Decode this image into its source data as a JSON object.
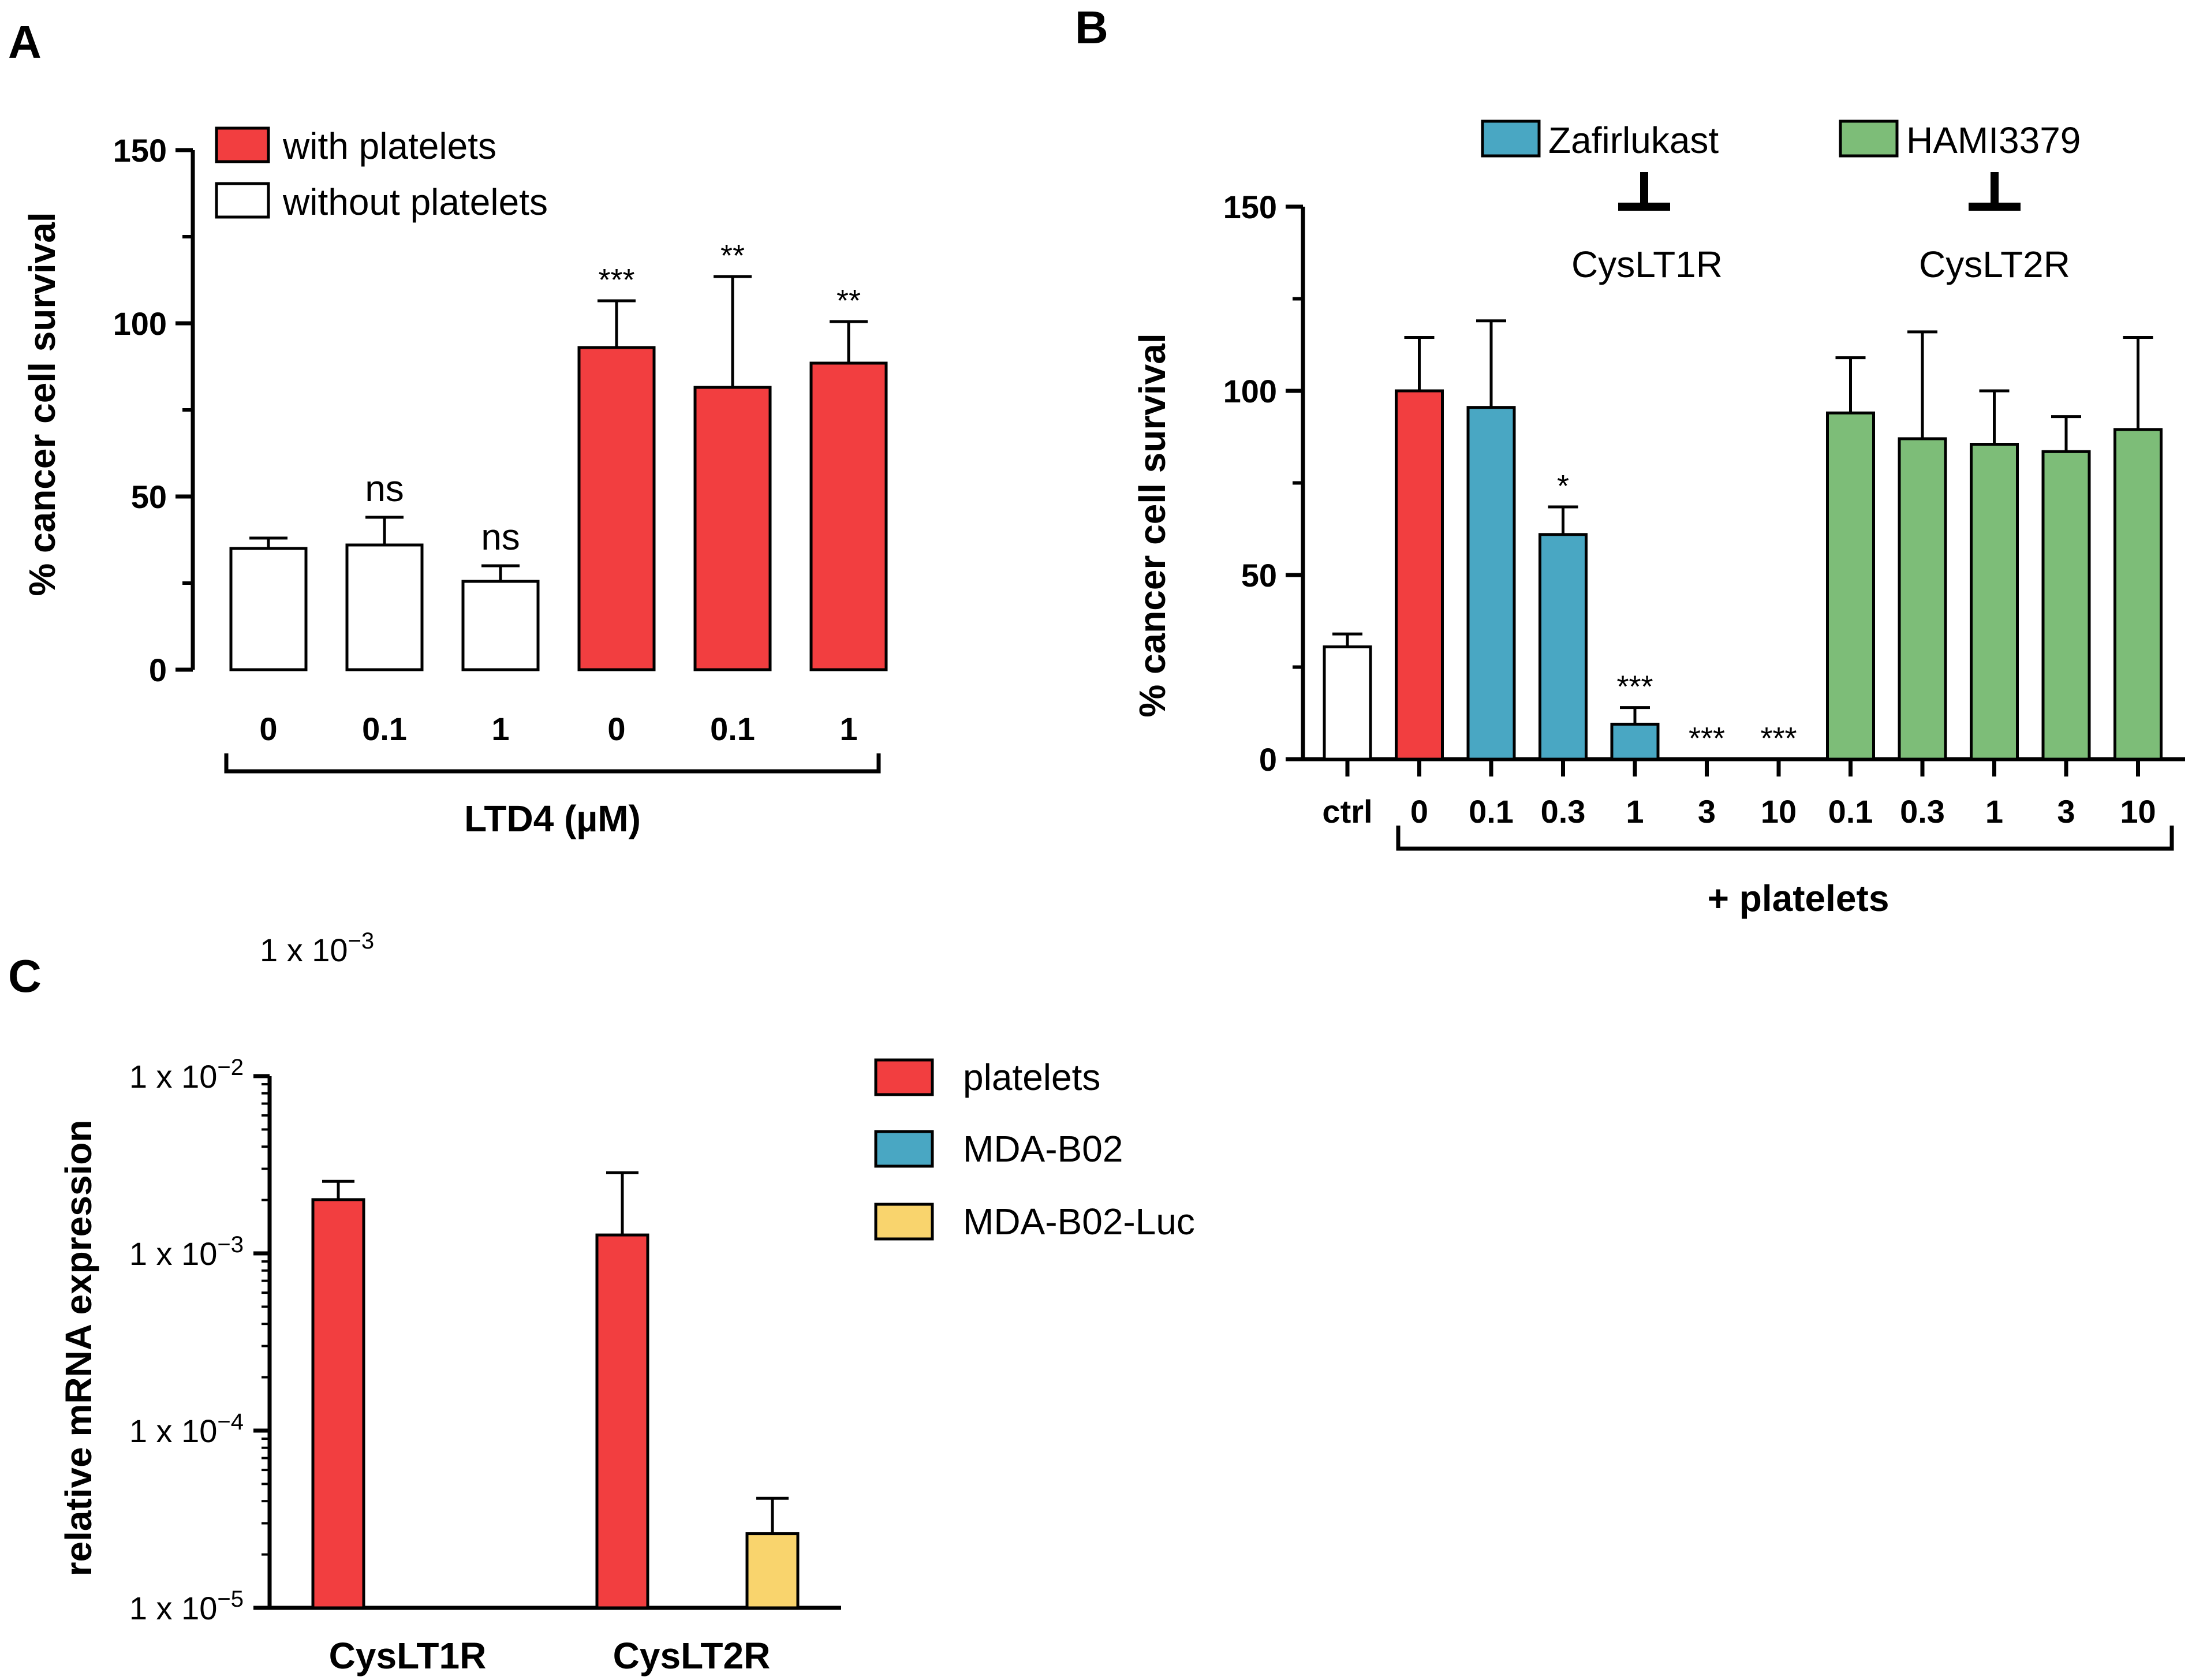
{
  "colors": {
    "red": "#f23e40",
    "blue": "#49a7c3",
    "green": "#7dbd78",
    "yellow": "#f9d46d",
    "white": "#ffffff",
    "axis": "#000000"
  },
  "chart_data": [
    {
      "panel": "A",
      "type": "bar",
      "ylabel": "% cancer cell survival",
      "xlabel": "LTD4 (µM)",
      "ylim": [
        0,
        150
      ],
      "yticks": [
        "0",
        "50",
        "100",
        "150"
      ],
      "legend": [
        {
          "label": "with platelets",
          "color": "#f23e40"
        },
        {
          "label": "without platelets",
          "color": "#ffffff"
        }
      ],
      "bars": [
        {
          "category": "0",
          "value": 35,
          "error": 3,
          "color": "#ffffff",
          "sig": ""
        },
        {
          "category": "0.1",
          "value": 36,
          "error": 8,
          "color": "#ffffff",
          "sig": "ns"
        },
        {
          "category": "1",
          "value": 25.5,
          "error": 4.5,
          "color": "#ffffff",
          "sig": "ns"
        },
        {
          "category": "0",
          "value": 93,
          "error": 13.5,
          "color": "#f23e40",
          "sig": "***"
        },
        {
          "category": "0.1",
          "value": 81.5,
          "error": 32,
          "color": "#f23e40",
          "sig": "**"
        },
        {
          "category": "1",
          "value": 88.5,
          "error": 12,
          "color": "#f23e40",
          "sig": "**"
        }
      ]
    },
    {
      "panel": "B",
      "type": "bar",
      "ylabel": "% cancer cell survival",
      "xlabel": "+ platelets",
      "ylim": [
        0,
        150
      ],
      "yticks": [
        "0",
        "50",
        "100",
        "150"
      ],
      "legend": [
        {
          "label": "Zafirlukast",
          "color": "#49a7c3",
          "target": "CysLT1R"
        },
        {
          "label": "HAMI3379",
          "color": "#7dbd78",
          "target": "CysLT2R"
        }
      ],
      "bars": [
        {
          "category": "ctrl",
          "value": 30.5,
          "error": 3.5,
          "color": "#ffffff",
          "sig": ""
        },
        {
          "category": "0",
          "value": 100,
          "error": 14.5,
          "color": "#f23e40",
          "sig": ""
        },
        {
          "category": "0.1",
          "value": 95.5,
          "error": 23.5,
          "color": "#49a7c3",
          "sig": ""
        },
        {
          "category": "0.3",
          "value": 61,
          "error": 7.5,
          "color": "#49a7c3",
          "sig": "*"
        },
        {
          "category": "1",
          "value": 9.5,
          "error": 4.5,
          "color": "#49a7c3",
          "sig": "***"
        },
        {
          "category": "3",
          "value": 0,
          "error": 0,
          "color": "#49a7c3",
          "sig": "***"
        },
        {
          "category": "10",
          "value": 0,
          "error": 0,
          "color": "#49a7c3",
          "sig": "***"
        },
        {
          "category": "0.1",
          "value": 94,
          "error": 15,
          "color": "#7dbd78",
          "sig": ""
        },
        {
          "category": "0.3",
          "value": 87,
          "error": 29,
          "color": "#7dbd78",
          "sig": ""
        },
        {
          "category": "1",
          "value": 85.5,
          "error": 14.5,
          "color": "#7dbd78",
          "sig": ""
        },
        {
          "category": "3",
          "value": 83.5,
          "error": 9.5,
          "color": "#7dbd78",
          "sig": ""
        },
        {
          "category": "10",
          "value": 89.5,
          "error": 25,
          "color": "#7dbd78",
          "sig": ""
        }
      ]
    },
    {
      "panel": "C",
      "type": "bar",
      "scale": "log",
      "ylabel": "relative mRNA expression",
      "ylim": [
        1e-05,
        0.01
      ],
      "yticks": [
        {
          "mantissa": "1 x 10",
          "exp": "−5"
        },
        {
          "mantissa": "1 x 10",
          "exp": "−4"
        },
        {
          "mantissa": "1 x 10",
          "exp": "−3"
        },
        {
          "mantissa": "1 x 10",
          "exp": "−2"
        }
      ],
      "stray_label": {
        "mantissa": "1 x 10",
        "exp": "−3"
      },
      "categories": [
        "CysLT1R",
        "CysLT2R"
      ],
      "series": [
        {
          "name": "platelets",
          "color": "#f23e40",
          "values": [
            0.00201,
            0.00127
          ],
          "errors_upper": [
            0.00255,
            0.00285
          ]
        },
        {
          "name": "MDA-B02",
          "color": "#49a7c3",
          "values": [
            null,
            null
          ],
          "errors_upper": [
            null,
            null
          ]
        },
        {
          "name": "MDA-B02-Luc",
          "color": "#f9d46d",
          "values": [
            null,
            2.62e-05
          ],
          "errors_upper": [
            null,
            4.15e-05
          ]
        }
      ]
    }
  ]
}
